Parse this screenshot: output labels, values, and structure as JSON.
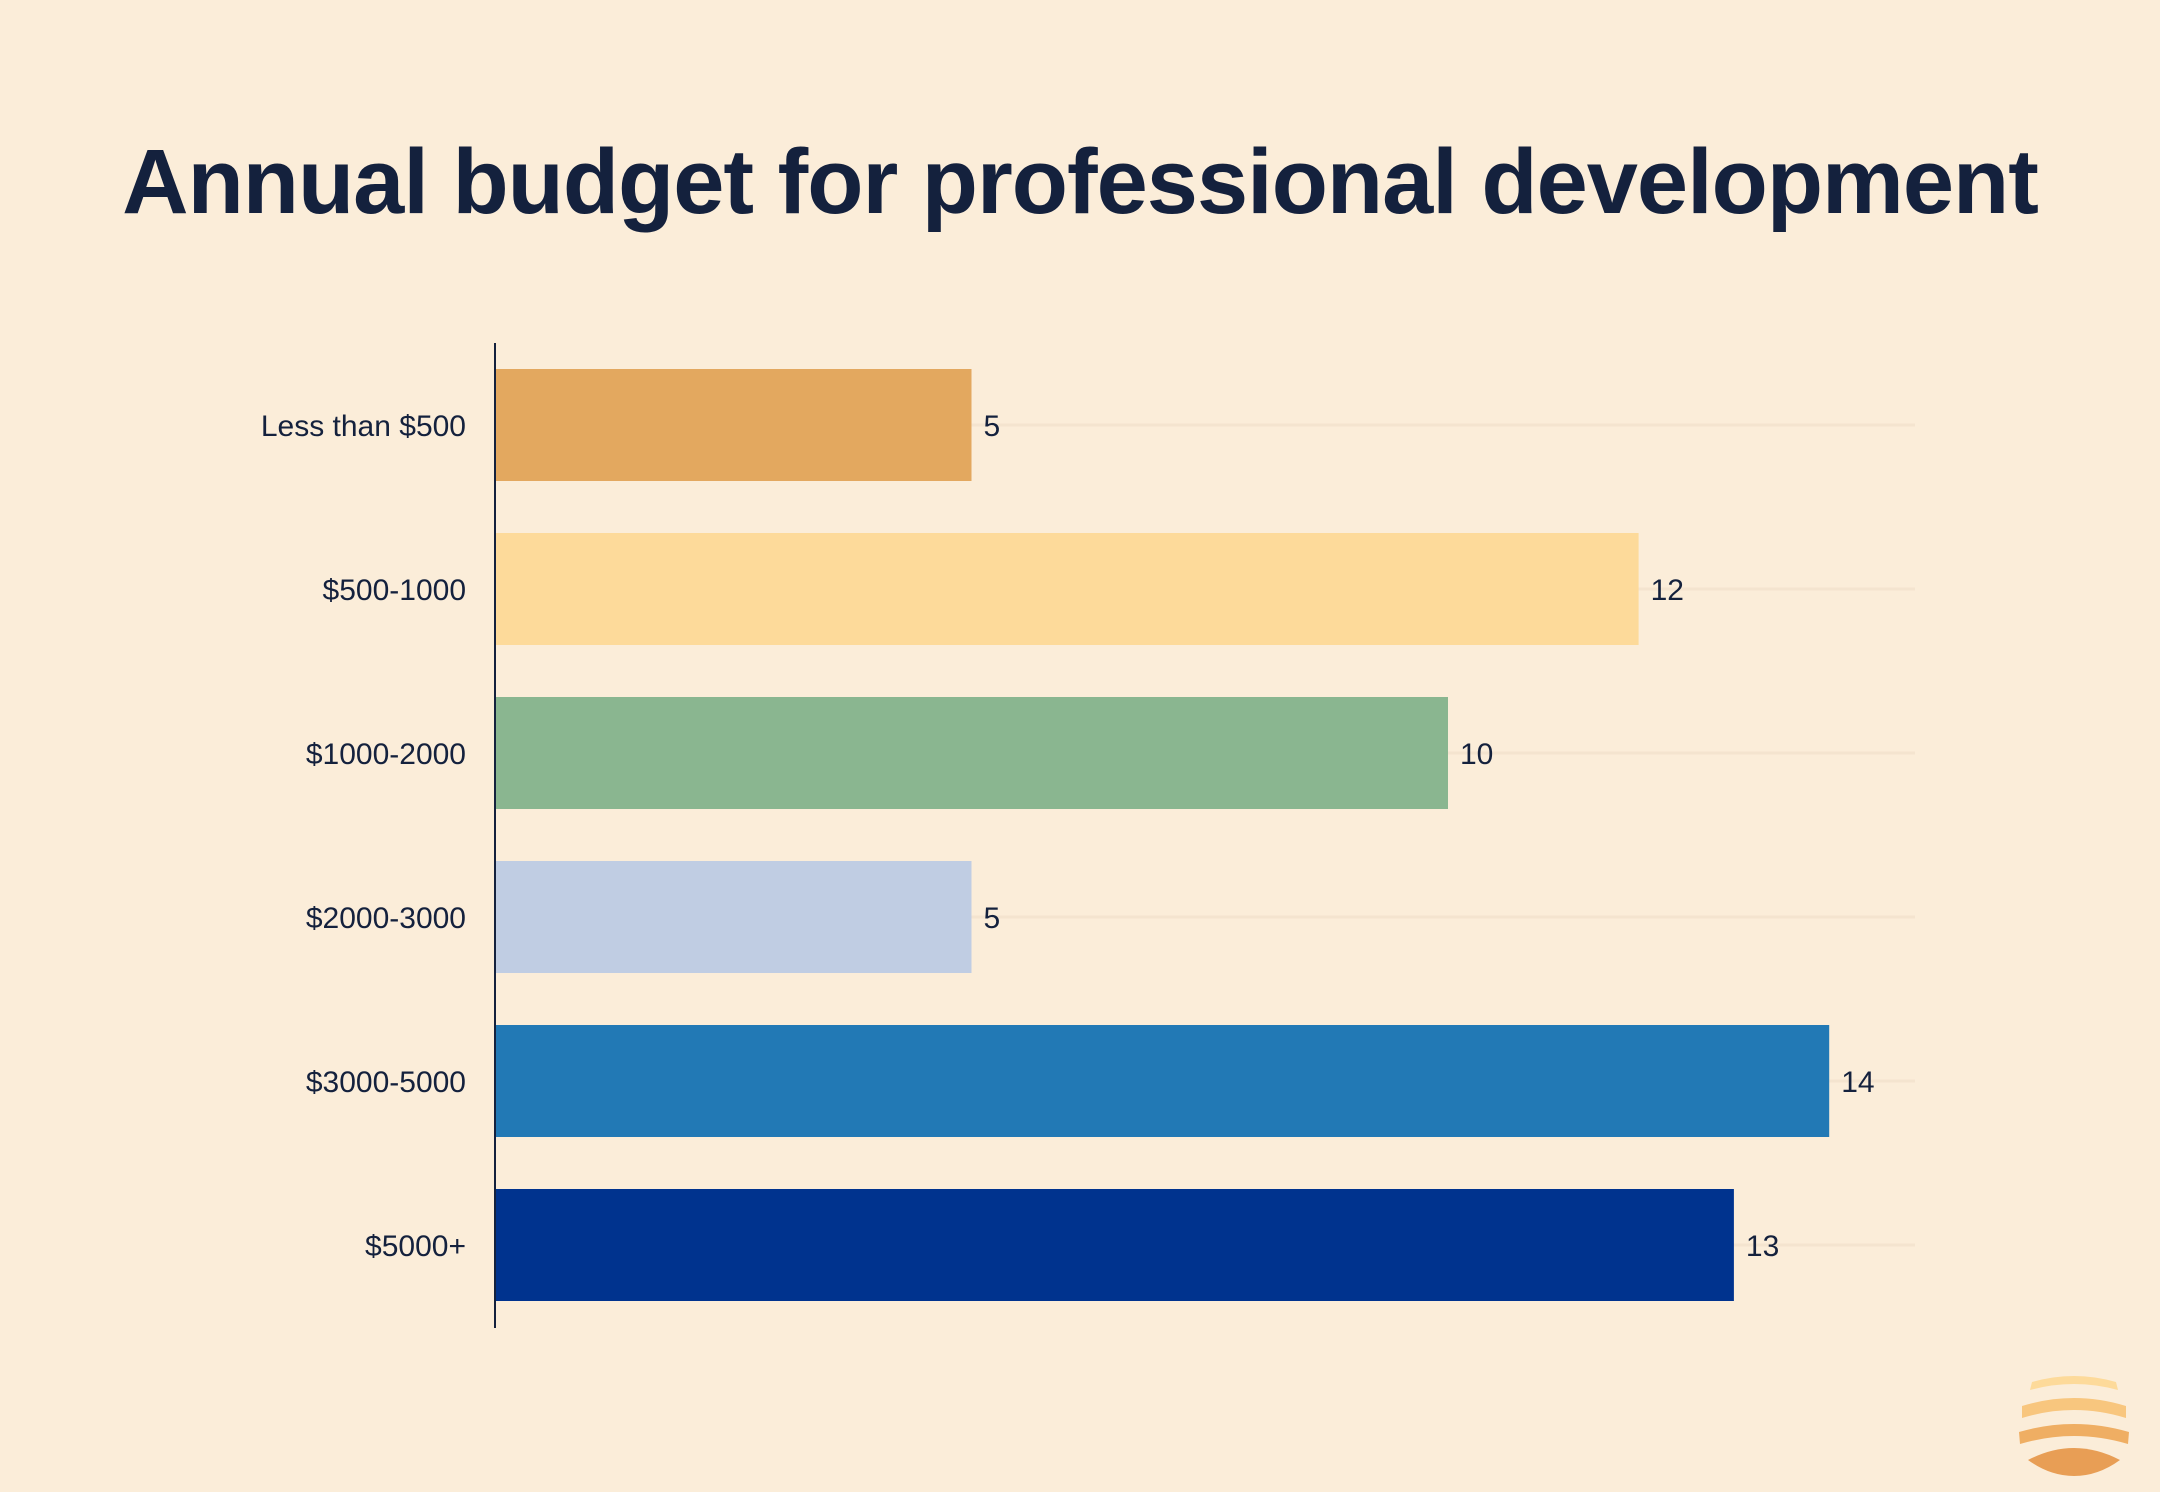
{
  "chart_data": {
    "type": "bar",
    "orientation": "horizontal",
    "title": "Annual budget for professional development",
    "categories": [
      "Less than $500",
      "$500-1000",
      "$1000-2000",
      "$2000-3000",
      "$3000-5000",
      "$5000+"
    ],
    "values": [
      5,
      12,
      10,
      5,
      14,
      13
    ],
    "colors": [
      "#E3A85F",
      "#FDDA9A",
      "#8AB690",
      "#C0CDE3",
      "#2279B5",
      "#00338E"
    ],
    "xlim": [
      0,
      15
    ],
    "grid": false,
    "data_labels": true
  },
  "branding": {
    "logo_icon": "sunset-waves-logo-icon"
  }
}
